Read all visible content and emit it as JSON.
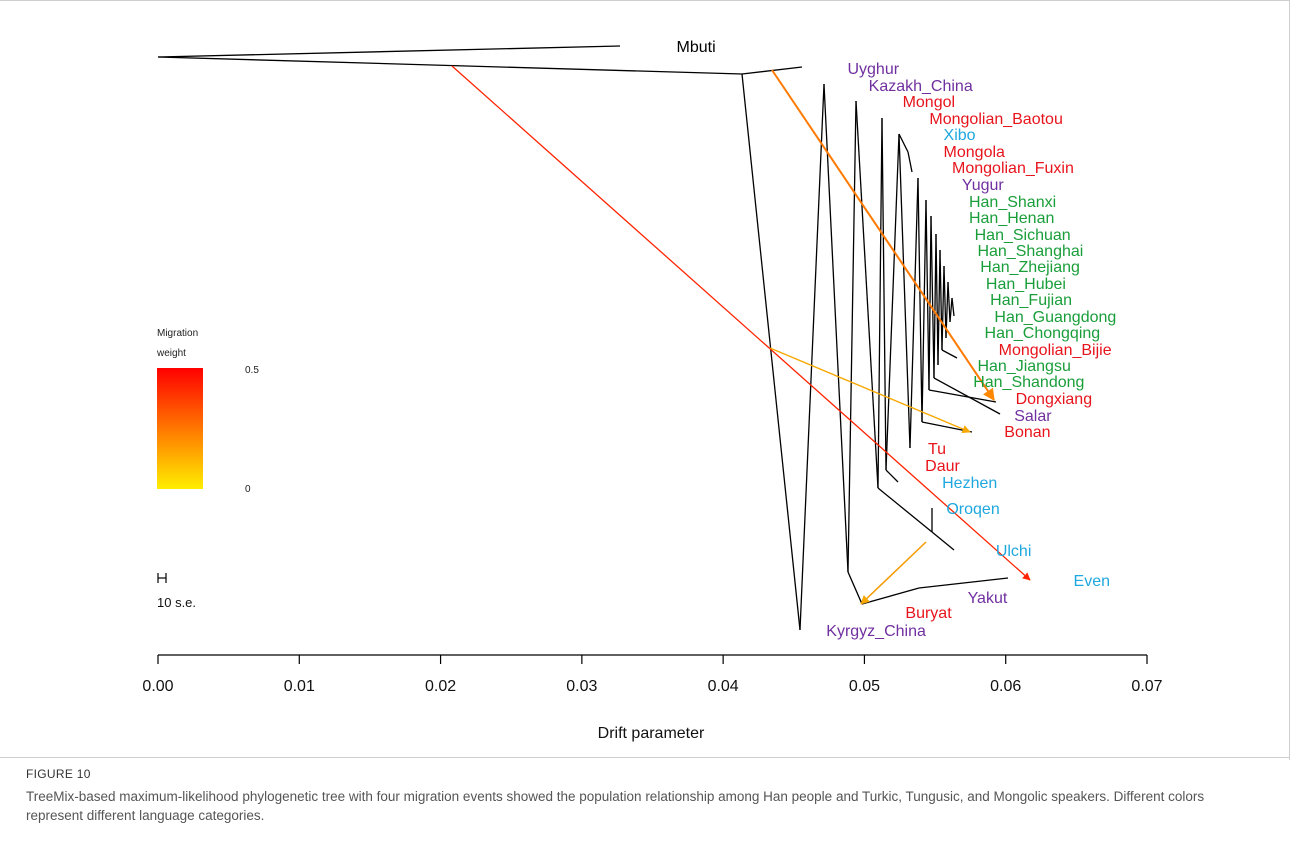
{
  "figure": {
    "label": "FIGURE 10",
    "caption": "TreeMix-based maximum-likelihood phylogenetic tree with four migration events showed the population relationship among Han people and Turkic, Tungusic, and Mongolic speakers. Different colors represent different language categories."
  },
  "chart_data": {
    "type": "tree",
    "title": "",
    "xlabel": "Drift parameter",
    "ylabel": "",
    "xlim": [
      0.0,
      0.07
    ],
    "x_ticks": [
      0.0,
      0.01,
      0.02,
      0.03,
      0.04,
      0.05,
      0.06,
      0.07
    ],
    "x_tick_labels": [
      "0.00",
      "0.01",
      "0.02",
      "0.03",
      "0.04",
      "0.05",
      "0.06",
      "0.07"
    ],
    "scale_bar_label": "10 s.e.",
    "legend": {
      "title_line1": "Migration",
      "title_line2": "weight",
      "max_label": "0.5",
      "min_label": "0",
      "color_max": "#ff0000",
      "color_min": "#ffee00",
      "placement": "left"
    },
    "language_colors": {
      "Outgroup": "#000000",
      "Turkic": "#7030a0",
      "Mongolic": "#e8141c",
      "Tungusic": "#1fa8df",
      "Sinitic": "#1a9e3a"
    },
    "populations": [
      {
        "name": "Mbuti",
        "group": "Outgroup",
        "x": 0.0367
      },
      {
        "name": "Uyghur",
        "group": "Turkic",
        "x": 0.0488
      },
      {
        "name": "Kazakh_China",
        "group": "Turkic",
        "x": 0.0503
      },
      {
        "name": "Mongol",
        "group": "Mongolic",
        "x": 0.0527
      },
      {
        "name": "Mongolian_Baotou",
        "group": "Mongolic",
        "x": 0.0546
      },
      {
        "name": "Xibo",
        "group": "Tungusic",
        "x": 0.0556
      },
      {
        "name": "Mongola",
        "group": "Mongolic",
        "x": 0.0556
      },
      {
        "name": "Mongolian_Fuxin",
        "group": "Mongolic",
        "x": 0.0562
      },
      {
        "name": "Yugur",
        "group": "Turkic",
        "x": 0.0569
      },
      {
        "name": "Han_Shanxi",
        "group": "Sinitic",
        "x": 0.0574
      },
      {
        "name": "Han_Henan",
        "group": "Sinitic",
        "x": 0.0574
      },
      {
        "name": "Han_Sichuan",
        "group": "Sinitic",
        "x": 0.0578
      },
      {
        "name": "Han_Shanghai",
        "group": "Sinitic",
        "x": 0.058
      },
      {
        "name": "Han_Zhejiang",
        "group": "Sinitic",
        "x": 0.0582
      },
      {
        "name": "Han_Hubei",
        "group": "Sinitic",
        "x": 0.0586
      },
      {
        "name": "Han_Fujian",
        "group": "Sinitic",
        "x": 0.0589
      },
      {
        "name": "Han_Guangdong",
        "group": "Sinitic",
        "x": 0.0592
      },
      {
        "name": "Han_Chongqing",
        "group": "Sinitic",
        "x": 0.0585
      },
      {
        "name": "Mongolian_Bijie",
        "group": "Mongolic",
        "x": 0.0595
      },
      {
        "name": "Han_Jiangsu",
        "group": "Sinitic",
        "x": 0.058
      },
      {
        "name": "Han_Shandong",
        "group": "Sinitic",
        "x": 0.0577
      },
      {
        "name": "Dongxiang",
        "group": "Mongolic",
        "x": 0.0607
      },
      {
        "name": "Salar",
        "group": "Turkic",
        "x": 0.0606
      },
      {
        "name": "Bonan",
        "group": "Mongolic",
        "x": 0.0599
      },
      {
        "name": "Tu",
        "group": "Mongolic",
        "x": 0.0545
      },
      {
        "name": "Daur",
        "group": "Mongolic",
        "x": 0.0543
      },
      {
        "name": "Hezhen",
        "group": "Tungusic",
        "x": 0.0555
      },
      {
        "name": "Oroqen",
        "group": "Tungusic",
        "x": 0.0558
      },
      {
        "name": "Ulchi",
        "group": "Tungusic",
        "x": 0.0593
      },
      {
        "name": "Even",
        "group": "Tungusic",
        "x": 0.0648
      },
      {
        "name": "Yakut",
        "group": "Turkic",
        "x": 0.0573
      },
      {
        "name": "Buryat",
        "group": "Mongolic",
        "x": 0.0529
      },
      {
        "name": "Kyrgyz_China",
        "group": "Turkic",
        "x": 0.0473
      }
    ],
    "migration_events": [
      {
        "from": "Mbuti-lineage",
        "to": "Even",
        "weight": 0.5
      },
      {
        "from": "Mbuti-lineage",
        "to": "Dongxiang",
        "weight": 0.3
      },
      {
        "from": "Tungusic-lineage",
        "to": "Tu",
        "weight": 0.15
      },
      {
        "from": "Yakut-lineage",
        "to": "Kyrgyz_China",
        "weight": 0.15
      }
    ]
  }
}
